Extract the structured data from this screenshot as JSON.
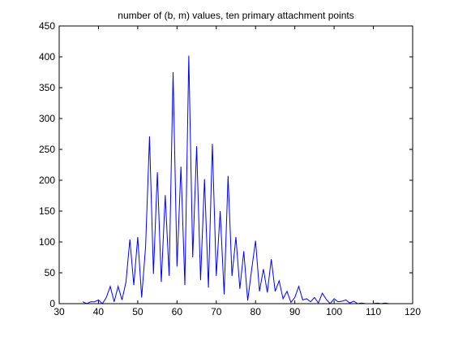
{
  "chart_data": {
    "type": "line",
    "title": "number of (b, m) values, ten primary attachment points",
    "xlabel": "",
    "ylabel": "",
    "xlim": [
      30,
      120
    ],
    "ylim": [
      0,
      450
    ],
    "x_ticks": [
      30,
      40,
      50,
      60,
      70,
      80,
      90,
      100,
      110,
      120
    ],
    "y_ticks": [
      0,
      50,
      100,
      150,
      200,
      250,
      300,
      350,
      400,
      450
    ],
    "grid": false,
    "legend": "none",
    "series": [
      {
        "color": "#0000ff",
        "x": [
          36,
          37,
          38,
          39,
          40,
          41,
          42,
          43,
          44,
          45,
          46,
          47,
          48,
          49,
          50,
          51,
          52,
          53,
          54,
          55,
          56,
          57,
          58,
          59,
          60,
          61,
          62,
          63,
          64,
          65,
          66,
          67,
          68,
          69,
          70,
          71,
          72,
          73,
          74,
          75,
          76,
          77,
          78,
          79,
          80,
          81,
          82,
          83,
          84,
          85,
          86,
          87,
          88,
          89,
          90,
          91,
          92,
          93,
          94,
          95,
          96,
          97,
          98,
          99,
          100,
          101,
          102,
          103,
          104,
          105,
          106,
          107,
          108,
          109,
          110,
          111,
          112,
          113,
          114,
          115,
          116,
          117,
          118,
          119,
          120
        ],
        "y": [
          3,
          0,
          3,
          3,
          6,
          0,
          10,
          28,
          3,
          28,
          6,
          35,
          104,
          30,
          108,
          10,
          92,
          271,
          48,
          213,
          35,
          176,
          45,
          375,
          60,
          222,
          30,
          402,
          75,
          255,
          38,
          202,
          26,
          259,
          45,
          150,
          15,
          207,
          45,
          108,
          24,
          85,
          5,
          55,
          102,
          20,
          56,
          18,
          72,
          20,
          37,
          8,
          20,
          2,
          10,
          28,
          6,
          8,
          3,
          10,
          1,
          17,
          7,
          0,
          8,
          3,
          4,
          6,
          1,
          4,
          0,
          1,
          0,
          0,
          0,
          1,
          0,
          1,
          0,
          0,
          0,
          0,
          0,
          0,
          0
        ]
      }
    ]
  }
}
